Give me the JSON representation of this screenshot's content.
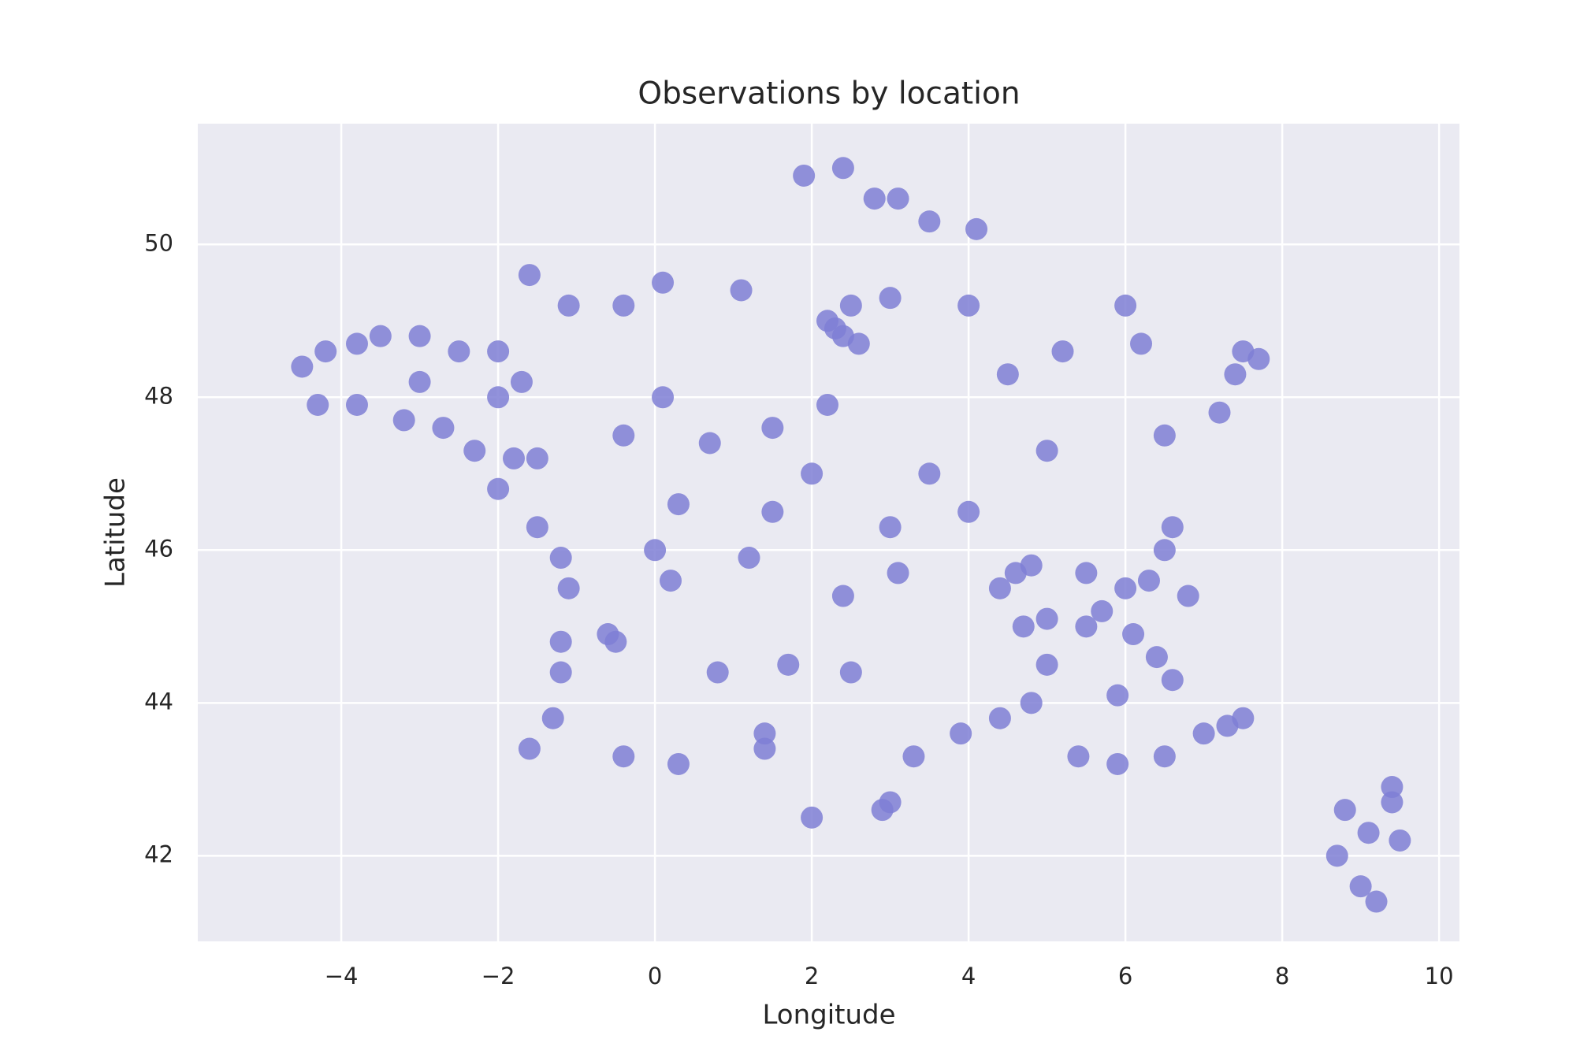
{
  "chart_data": {
    "type": "scatter",
    "title": "Observations by location",
    "x_label": "Longitude",
    "y_label": "Latitude",
    "color": "#7f7fd5",
    "grid": true,
    "xlim": [
      -5.83,
      10.26
    ],
    "ylim": [
      40.88,
      51.58
    ],
    "xticks": [
      {
        "value": -4,
        "label": "−4"
      },
      {
        "value": -2,
        "label": "−2"
      },
      0,
      2,
      4,
      6,
      8,
      10
    ],
    "yticks": [
      42,
      44,
      46,
      48,
      50
    ],
    "x": [
      -4.5,
      -4.2,
      -3.8,
      -3.5,
      -3,
      -2.5,
      -2,
      -1.7,
      -4.3,
      -3.8,
      -3.2,
      -2.7,
      -2.3,
      -1.8,
      -1.5,
      -3,
      -2,
      -2,
      -1.5,
      -1.2,
      -1.1,
      -1.2,
      -1.2,
      -1.3,
      -1.6,
      -0.5,
      -0.6,
      0.2,
      0.3,
      -0.4,
      0.1,
      0.7,
      1.5,
      2.2,
      -1.6,
      -1.1,
      -0.4,
      0.1,
      1.1,
      1.9,
      2.4,
      2.8,
      3.1,
      3.5,
      4.1,
      2.3,
      2.4,
      2.6,
      2.2,
      2.5,
      3,
      4,
      4.5,
      5.2,
      6.2,
      6,
      7.5,
      7.7,
      7.2,
      7.4,
      6.5,
      5,
      4.8,
      3,
      2,
      1.2,
      3.1,
      2.4,
      4.4,
      0,
      1.5,
      3.5,
      4,
      5.7,
      6,
      6.5,
      6.6,
      5.5,
      6.3,
      6.8,
      6.1,
      6.4,
      6.6,
      5.9,
      5,
      4.8,
      4.4,
      3.9,
      3.3,
      3,
      2.9,
      2,
      1.4,
      1.4,
      0.3,
      -0.4,
      0.8,
      1.7,
      2.5,
      5.4,
      5.9,
      6.5,
      7,
      7.3,
      7.5,
      5.5,
      5,
      4.6,
      4.7,
      8.8,
      8.7,
      9,
      9.2,
      9.4,
      9.5,
      9.4,
      9.1
    ],
    "values": [
      48.4,
      48.6,
      48.7,
      48.8,
      48.8,
      48.6,
      48.6,
      48.2,
      47.9,
      47.9,
      47.7,
      47.6,
      47.3,
      47.2,
      47.2,
      48.2,
      48,
      46.8,
      46.3,
      45.9,
      45.5,
      44.8,
      44.4,
      43.8,
      43.4,
      44.8,
      44.9,
      45.6,
      46.6,
      47.5,
      48,
      47.4,
      47.6,
      47.9,
      49.6,
      49.2,
      49.2,
      49.5,
      49.4,
      50.9,
      51,
      50.6,
      50.6,
      50.3,
      50.2,
      48.9,
      48.8,
      48.7,
      49,
      49.2,
      49.3,
      49.2,
      48.3,
      48.6,
      48.7,
      49.2,
      48.6,
      48.5,
      47.8,
      48.3,
      47.5,
      47.3,
      45.8,
      46.3,
      47,
      45.9,
      45.7,
      45.4,
      45.5,
      46,
      46.5,
      47,
      46.5,
      45.2,
      45.5,
      46,
      46.3,
      45.7,
      45.6,
      45.4,
      44.9,
      44.6,
      44.3,
      44.1,
      44.5,
      44,
      43.8,
      43.6,
      43.3,
      42.7,
      42.6,
      42.5,
      43.6,
      43.4,
      43.2,
      43.3,
      44.4,
      44.5,
      44.4,
      43.3,
      43.2,
      43.3,
      43.6,
      43.7,
      43.8,
      45,
      45.1,
      45.7,
      45,
      42.6,
      42,
      41.6,
      41.4,
      42.7,
      42.2,
      42.9,
      42.3
    ]
  }
}
